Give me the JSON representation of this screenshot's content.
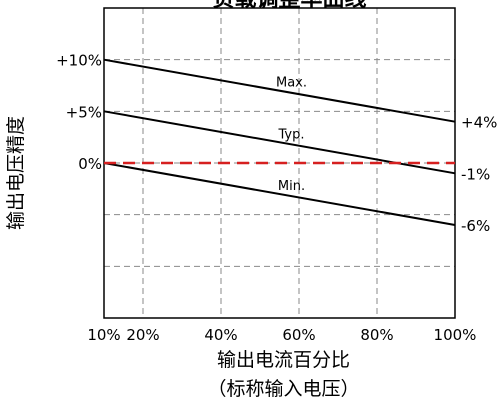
{
  "chart_data": {
    "type": "line",
    "title": "负载调整率曲线",
    "xlabel_line1": "输出电流百分比",
    "xlabel_line2": "（标称输入电压）",
    "ylabel": "输出电压精度",
    "x_ticks": [
      "10%",
      "20%",
      "40%",
      "60%",
      "80%",
      "100%"
    ],
    "x_tick_values": [
      10,
      20,
      40,
      60,
      80,
      100
    ],
    "y_ticks_left": [
      "+10%",
      "+5%",
      "0%"
    ],
    "y_tick_left_values": [
      10,
      5,
      0
    ],
    "y_ticks_right": [
      "+4%",
      "-1%",
      "-6%"
    ],
    "y_tick_right_values": [
      4,
      -1,
      -6
    ],
    "xlim": [
      10,
      100
    ],
    "ylim": [
      -15,
      15
    ],
    "y_gridlines": [
      10,
      5,
      0,
      -5,
      -10
    ],
    "x_gridlines": [
      20,
      40,
      60,
      80
    ],
    "grid": true,
    "series": [
      {
        "name": "Max.",
        "x": [
          10,
          100
        ],
        "y": [
          10,
          4
        ],
        "label_x": 55,
        "color": "#000000",
        "dashed": false
      },
      {
        "name": "Typ.",
        "x": [
          10,
          100
        ],
        "y": [
          5,
          -1
        ],
        "label_x": 55,
        "color": "#000000",
        "dashed": false
      },
      {
        "name": "Min.",
        "x": [
          10,
          100
        ],
        "y": [
          0,
          -6
        ],
        "label_x": 55,
        "color": "#000000",
        "dashed": false
      }
    ],
    "reference_line": {
      "y": 0,
      "color": "#d62020",
      "dashed": true
    }
  }
}
